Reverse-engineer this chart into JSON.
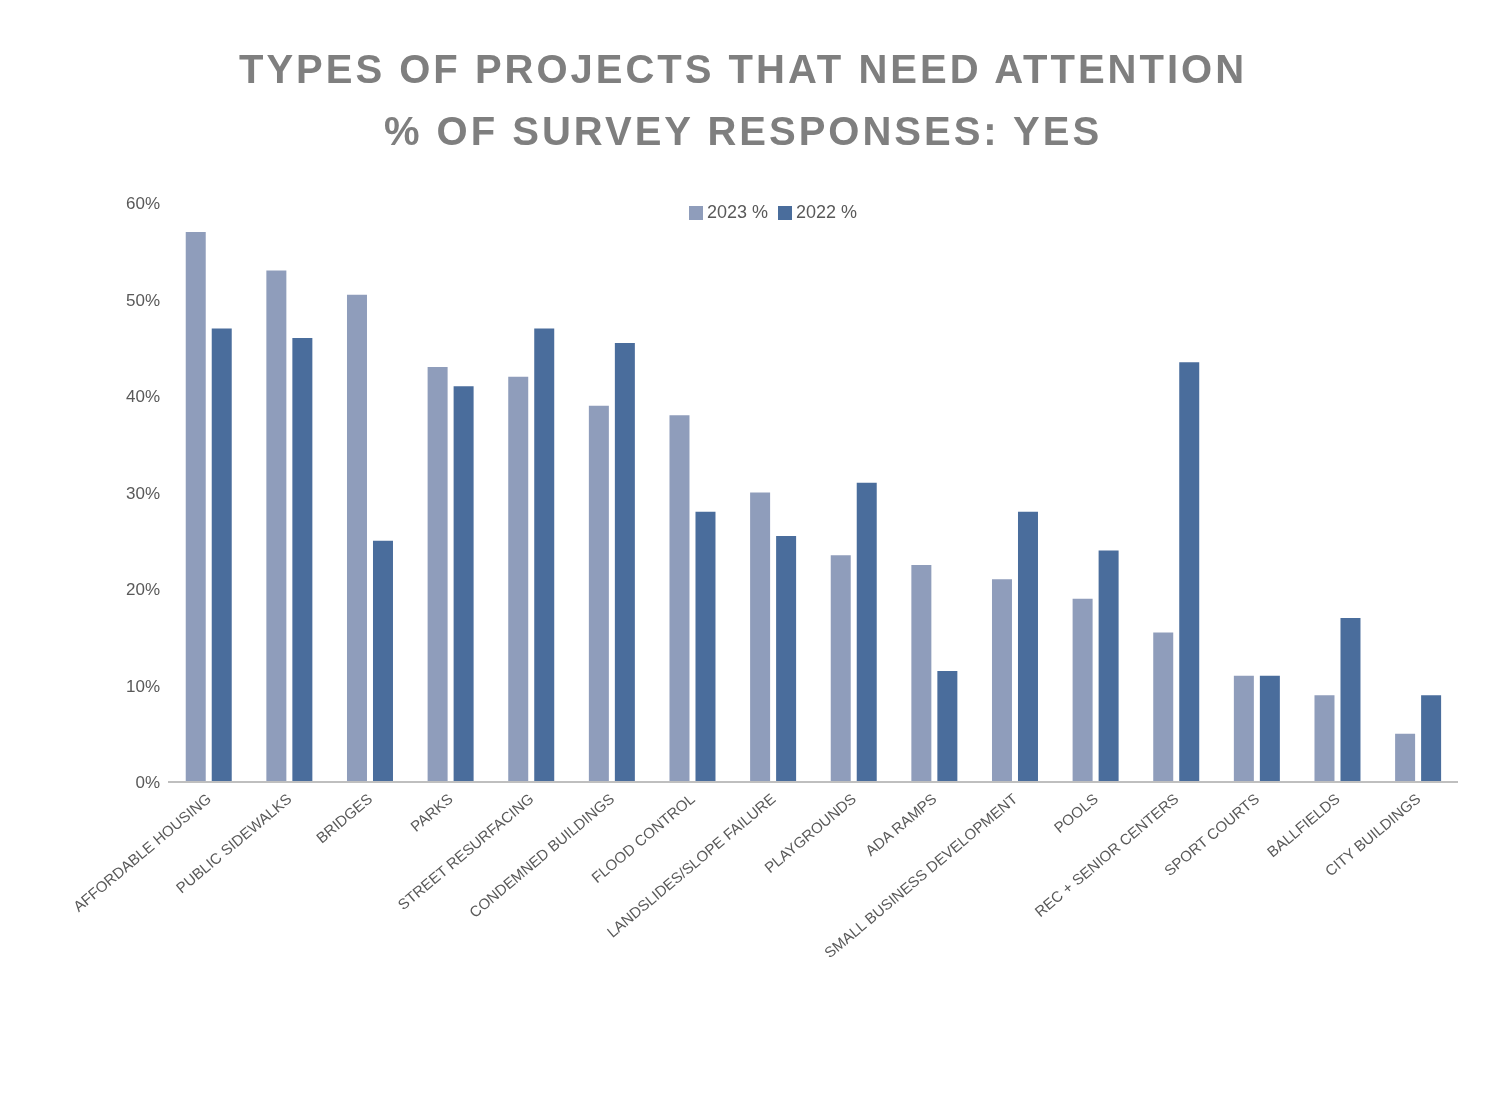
{
  "chart_data": {
    "type": "bar",
    "title": "TYPES OF PROJECTS THAT NEED ATTENTION",
    "subtitle": "% OF SURVEY RESPONSES: YES",
    "categories": [
      "AFFORDABLE HOUSING",
      "PUBLIC SIDEWALKS",
      "BRIDGES",
      "PARKS",
      "STREET RESURFACING",
      "CONDEMNED BUILDINGS",
      "FLOOD CONTROL",
      "LANDSLIDES/SLOPE FAILURE",
      "PLAYGROUNDS",
      "ADA RAMPS",
      "SMALL BUSINESS DEVELOPMENT",
      "POOLS",
      "REC + SENIOR CENTERS",
      "SPORT COURTS",
      "BALLFIELDS",
      "CITY BUILDINGS"
    ],
    "series": [
      {
        "name": "2023 %",
        "color": "#8f9dbb",
        "values": [
          57,
          53,
          50.5,
          43,
          42,
          39,
          38,
          30,
          23.5,
          22.5,
          21,
          19,
          15.5,
          11,
          9,
          5
        ]
      },
      {
        "name": "2022 %",
        "color": "#4a6d9c",
        "values": [
          47,
          46,
          25,
          41,
          47,
          45.5,
          28,
          25.5,
          31,
          11.5,
          28,
          24,
          43.5,
          11,
          17,
          9
        ]
      }
    ],
    "ylim": [
      0,
      60
    ],
    "yticks": [
      {
        "value": 0,
        "label": "0%"
      },
      {
        "value": 10,
        "label": "10%"
      },
      {
        "value": 20,
        "label": "20%"
      },
      {
        "value": 30,
        "label": "30%"
      },
      {
        "value": 40,
        "label": "40%"
      },
      {
        "value": 50,
        "label": "50%"
      },
      {
        "value": 60,
        "label": "60%"
      }
    ],
    "grid": false,
    "legend": "top"
  }
}
